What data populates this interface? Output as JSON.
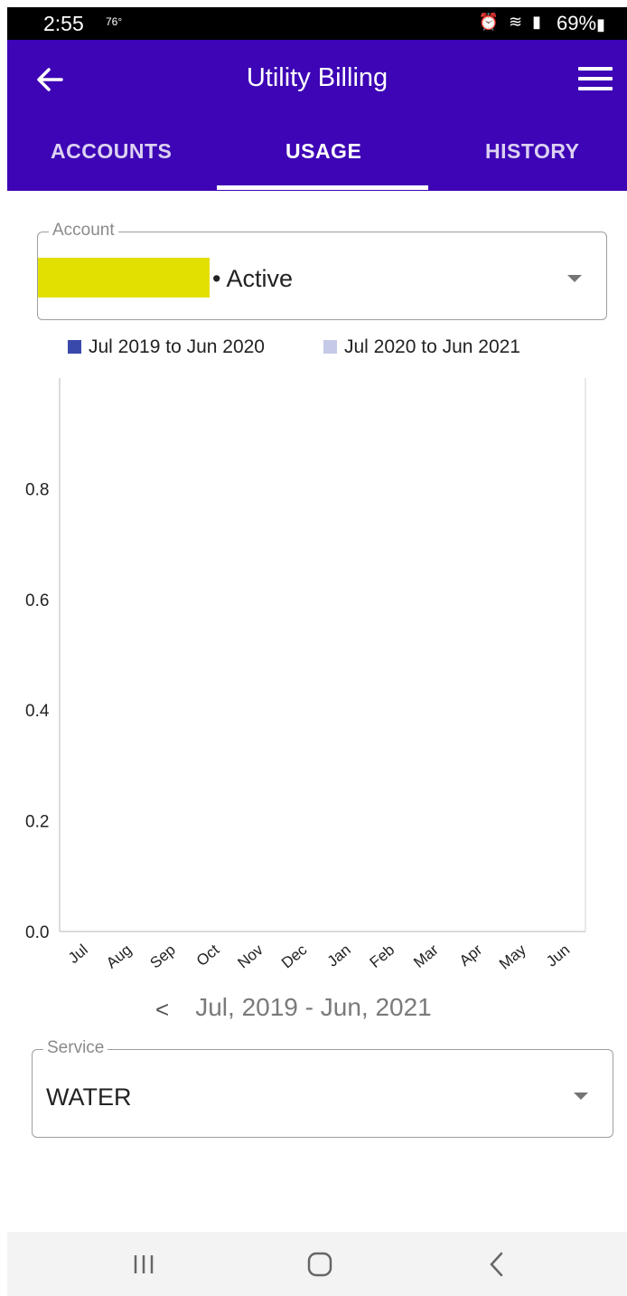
{
  "status_bar": {
    "time": "2:55",
    "temperature": "76°",
    "battery": "69%"
  },
  "app_bar": {
    "title": "Utility Billing",
    "back_icon": "arrow-left-icon",
    "menu_icon": "hamburger-menu-icon"
  },
  "tabs": [
    {
      "label": "ACCOUNTS",
      "active": false
    },
    {
      "label": "USAGE",
      "active": true
    },
    {
      "label": "HISTORY",
      "active": false
    }
  ],
  "account_select": {
    "label": "Account",
    "value": "• Active"
  },
  "service_select": {
    "label": "Service",
    "value": "WATER"
  },
  "date_nav": {
    "prev_symbol": "<",
    "range": "Jul, 2019 - Jun, 2021"
  },
  "colors": {
    "brand": "#3d05b5",
    "series1": "#3949ab",
    "series2": "#c5cae9"
  },
  "chart_data": {
    "type": "bar",
    "categories": [
      "Jul",
      "Aug",
      "Sep",
      "Oct",
      "Nov",
      "Dec",
      "Jan",
      "Feb",
      "Mar",
      "Apr",
      "May",
      "Jun"
    ],
    "series": [
      {
        "name": "Jul 2019 to Jun 2020",
        "values": [
          0,
          0,
          0,
          0,
          0,
          0,
          0,
          0,
          0,
          0,
          0,
          0
        ],
        "color": "#3949ab"
      },
      {
        "name": "Jul 2020 to Jun 2021",
        "values": [
          0,
          0,
          0,
          0,
          0,
          0,
          0,
          0,
          0,
          0,
          0,
          0
        ],
        "color": "#c5cae9"
      }
    ],
    "yticks": [
      "0.0",
      "0.2",
      "0.4",
      "0.6",
      "0.8"
    ],
    "ylim": [
      0,
      1
    ],
    "legend": "top",
    "grid": false
  },
  "nav_bar": {
    "recent_icon": "recent-apps-icon",
    "home_icon": "home-icon",
    "back_icon": "back-chevron-icon"
  }
}
